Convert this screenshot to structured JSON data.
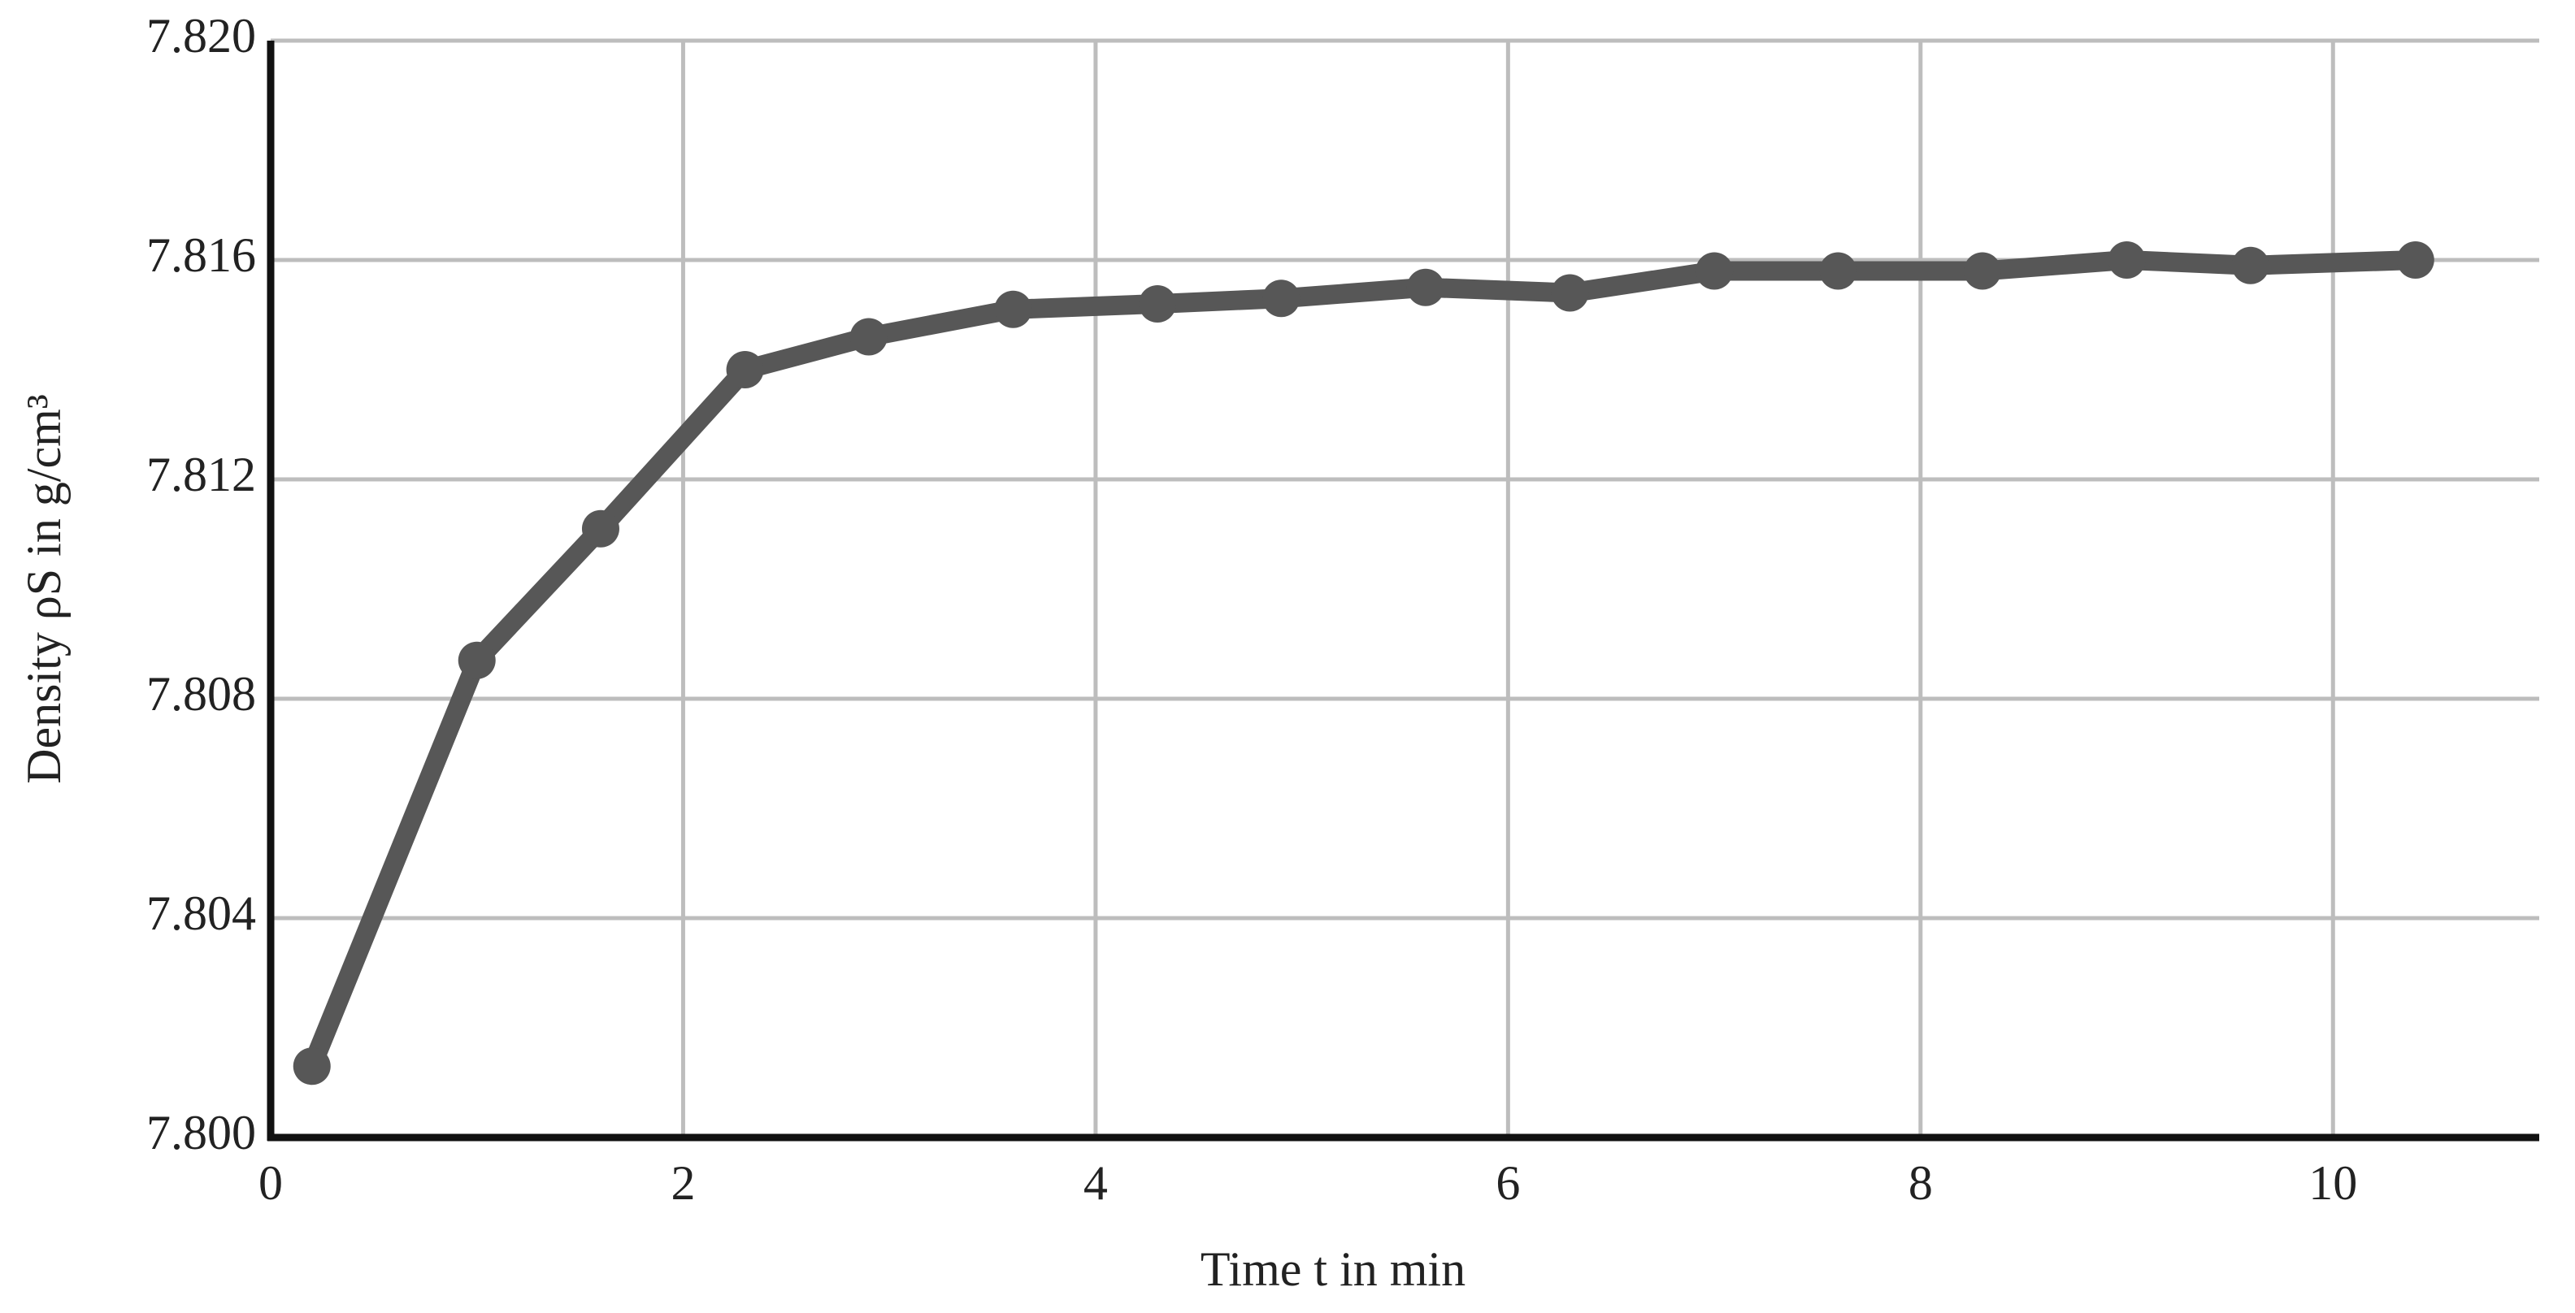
{
  "chart_data": {
    "type": "line",
    "x_label": "Time t in min",
    "y_label": "Density ρS in g/cm³",
    "x": [
      0.2,
      1.0,
      1.6,
      2.3,
      2.9,
      3.6,
      4.3,
      4.9,
      5.6,
      6.3,
      7.0,
      7.6,
      8.3,
      9.0,
      9.6,
      10.4
    ],
    "series": [
      {
        "color": "#575757",
        "values": [
          7.8013,
          7.8087,
          7.8111,
          7.814,
          7.8146,
          7.8151,
          7.8152,
          7.8153,
          7.8155,
          7.8154,
          7.8158,
          7.8158,
          7.8158,
          7.816,
          7.8159,
          7.816
        ]
      }
    ],
    "xlim": [
      0,
      11
    ],
    "xticks": [
      0,
      2,
      4,
      6,
      8,
      10
    ],
    "ylim": [
      7.8,
      7.82
    ],
    "yticks": [
      {
        "value": 7.8,
        "label": "7.800"
      },
      7.804,
      7.808,
      7.812,
      7.816,
      {
        "value": 7.82,
        "label": "7.820"
      }
    ],
    "grid": true
  }
}
